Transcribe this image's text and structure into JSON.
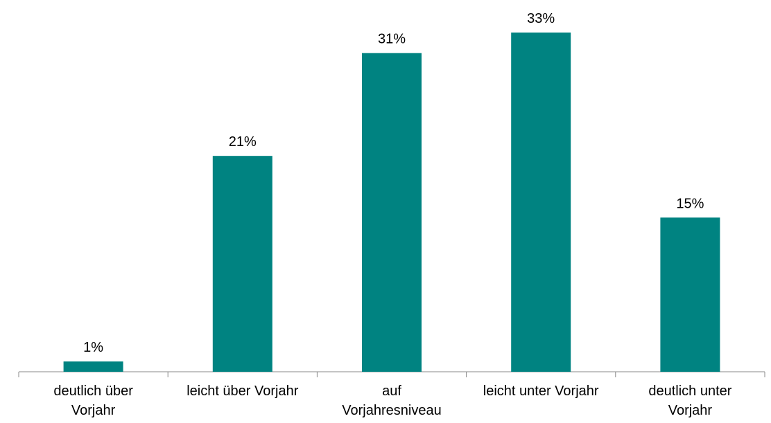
{
  "chart_data": {
    "type": "bar",
    "categories": [
      "deutlich über Vorjahr",
      "leicht über Vorjahr",
      "auf Vorjahresniveau",
      "leicht unter Vorjahr",
      "deutlich unter Vorjahr"
    ],
    "values": [
      1,
      21,
      31,
      33,
      15
    ],
    "value_labels": [
      "1%",
      "21%",
      "31%",
      "33%",
      "15%"
    ],
    "color": "#008381"
  }
}
